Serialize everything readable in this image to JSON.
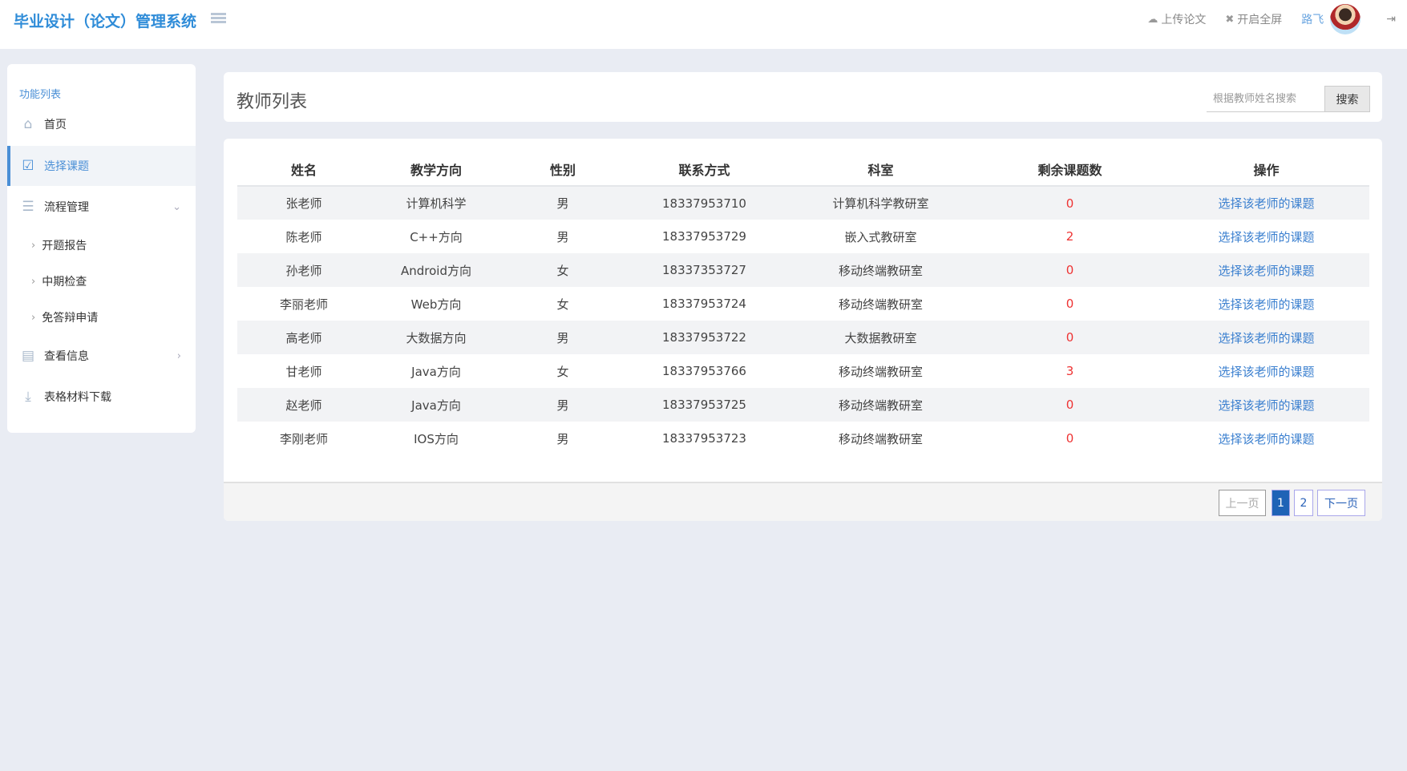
{
  "header": {
    "title": "毕业设计（论文）管理系统",
    "upload": "上传论文",
    "fullscreen": "开启全屏",
    "user": "路飞"
  },
  "sidebar": {
    "title": "功能列表",
    "items": [
      {
        "label": "首页",
        "icon": "home-icon"
      },
      {
        "label": "选择课题",
        "icon": "checkbox-icon",
        "active": true
      },
      {
        "label": "流程管理",
        "icon": "list-icon"
      },
      {
        "label": "查看信息",
        "icon": "calendar-icon"
      },
      {
        "label": "表格材料下载",
        "icon": "download-icon"
      }
    ],
    "sub": [
      "开题报告",
      "中期检查",
      "免答辩申请"
    ]
  },
  "page": {
    "title": "教师列表",
    "search_placeholder": "根据教师姓名搜索",
    "search_button": "搜索"
  },
  "table": {
    "headers": [
      "姓名",
      "教学方向",
      "性别",
      "联系方式",
      "科室",
      "剩余课题数",
      "操作"
    ],
    "rows": [
      [
        "张老师",
        "计算机科学",
        "男",
        "18337953710",
        "计算机科学教研室",
        "0",
        "选择该老师的课题"
      ],
      [
        "陈老师",
        "C++方向",
        "男",
        "18337953729",
        "嵌入式教研室",
        "2",
        "选择该老师的课题"
      ],
      [
        "孙老师",
        "Android方向",
        "女",
        "18337353727",
        "移动终端教研室",
        "0",
        "选择该老师的课题"
      ],
      [
        "李丽老师",
        "Web方向",
        "女",
        "18337953724",
        "移动终端教研室",
        "0",
        "选择该老师的课题"
      ],
      [
        "高老师",
        "大数据方向",
        "男",
        "18337953722",
        "大数据教研室",
        "0",
        "选择该老师的课题"
      ],
      [
        "甘老师",
        "Java方向",
        "女",
        "18337953766",
        "移动终端教研室",
        "3",
        "选择该老师的课题"
      ],
      [
        "赵老师",
        "Java方向",
        "男",
        "18337953725",
        "移动终端教研室",
        "0",
        "选择该老师的课题"
      ],
      [
        "李刚老师",
        "IOS方向",
        "男",
        "18337953723",
        "移动终端教研室",
        "0",
        "选择该老师的课题"
      ]
    ]
  },
  "pagination": {
    "prev": "上一页",
    "pages": [
      "1",
      "2"
    ],
    "current": "1",
    "next": "下一页"
  },
  "colors": {
    "accent": "#2f8cd8",
    "remaining": "#e33",
    "link": "#3a7fcf",
    "page_active": "#1f63b6"
  }
}
